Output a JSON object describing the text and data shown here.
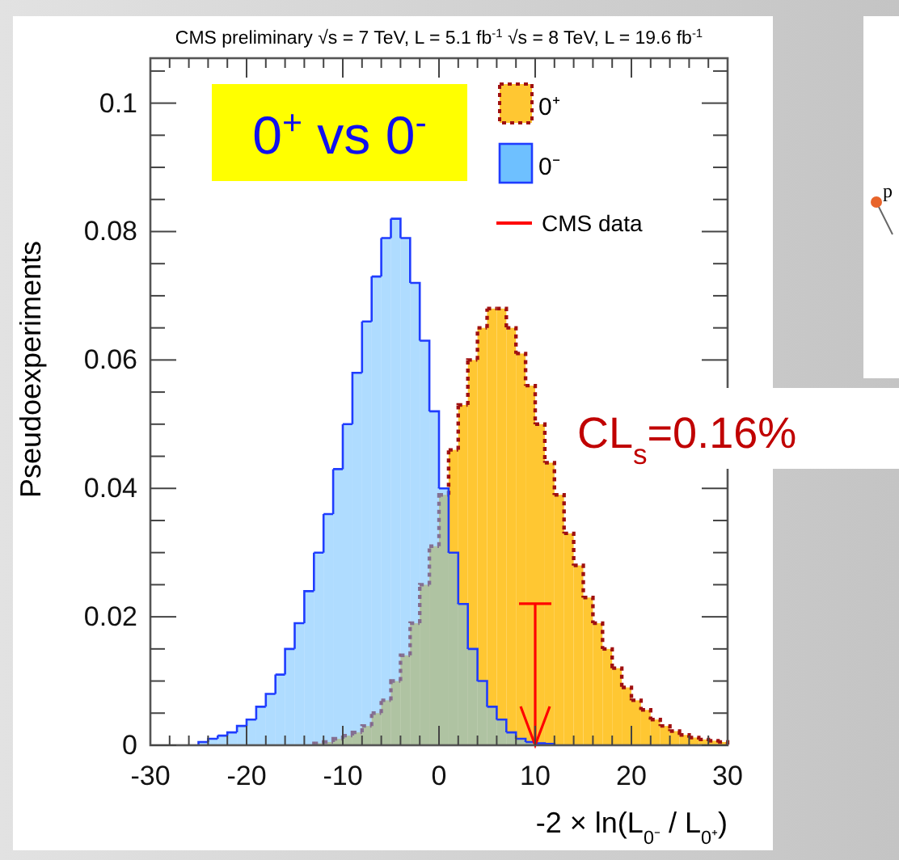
{
  "chart_data": {
    "type": "histogram",
    "title": "CMS preliminary    √s = 7 TeV, L = 5.1 fb$^{-1}$  √s = 8 TeV, L = 19.6 fb$^{-1}$",
    "xlabel": "-2 × ln(L$_{0⁻}$ / L$_{0⁺}$)",
    "ylabel": "Pseudoexperiments",
    "bins": [
      -30,
      -29,
      -28,
      -27,
      -26,
      -25,
      -24,
      -23,
      -22,
      -21,
      -20,
      -19,
      -18,
      -17,
      -16,
      -15,
      -14,
      -13,
      -12,
      -11,
      -10,
      -9,
      -8,
      -7,
      -6,
      -5,
      -4,
      -3,
      -2,
      -1,
      0,
      1,
      2,
      3,
      4,
      5,
      6,
      7,
      8,
      9,
      10,
      11,
      12,
      13,
      14,
      15,
      16,
      17,
      18,
      19,
      20,
      21,
      22,
      23,
      24,
      25,
      26,
      27,
      28,
      29,
      30
    ],
    "series": [
      {
        "name": "0⁺",
        "color": "#ffc732",
        "line_style": "dotted",
        "values": [
          0,
          0,
          0,
          0,
          0,
          0,
          0,
          0,
          0,
          0,
          0,
          0,
          0,
          0,
          0,
          0,
          0,
          0.0003,
          0.0005,
          0.001,
          0.0015,
          0.002,
          0.003,
          0.005,
          0.007,
          0.01,
          0.014,
          0.019,
          0.025,
          0.031,
          0.039,
          0.046,
          0.053,
          0.06,
          0.065,
          0.068,
          0.068,
          0.065,
          0.061,
          0.056,
          0.05,
          0.044,
          0.039,
          0.033,
          0.028,
          0.023,
          0.019,
          0.015,
          0.012,
          0.009,
          0.007,
          0.0055,
          0.004,
          0.003,
          0.0022,
          0.0016,
          0.0012,
          0.0009,
          0.0007,
          0.0005
        ]
      },
      {
        "name": "0⁻",
        "color": "#6ec0ff",
        "line_style": "solid",
        "values": [
          0,
          0,
          0,
          0,
          0,
          0.0005,
          0.001,
          0.0015,
          0.002,
          0.003,
          0.004,
          0.006,
          0.008,
          0.011,
          0.015,
          0.019,
          0.024,
          0.03,
          0.036,
          0.043,
          0.05,
          0.058,
          0.066,
          0.073,
          0.079,
          0.082,
          0.079,
          0.072,
          0.063,
          0.052,
          0.04,
          0.03,
          0.022,
          0.015,
          0.01,
          0.006,
          0.004,
          0.002,
          0.001,
          0.0005,
          0.0003,
          0.0002,
          0,
          0,
          0,
          0,
          0,
          0,
          0,
          0,
          0,
          0,
          0,
          0,
          0,
          0,
          0,
          0,
          0,
          0
        ]
      }
    ],
    "xlim": [
      -30,
      30
    ],
    "xticks": [
      -30,
      {
        "value": -28,
        "label": null
      },
      {
        "value": -26,
        "label": null
      },
      {
        "value": -24,
        "label": null
      },
      {
        "value": -22,
        "label": null
      },
      -20,
      {
        "value": -18,
        "label": null
      },
      {
        "value": -16,
        "label": null
      },
      {
        "value": -14,
        "label": null
      },
      {
        "value": -12,
        "label": null
      },
      -10,
      {
        "value": -8,
        "label": null
      },
      {
        "value": -6,
        "label": null
      },
      {
        "value": -4,
        "label": null
      },
      {
        "value": -2,
        "label": null
      },
      0,
      {
        "value": 2,
        "label": null
      },
      {
        "value": 4,
        "label": null
      },
      {
        "value": 6,
        "label": null
      },
      {
        "value": 8,
        "label": null
      },
      10,
      {
        "value": 12,
        "label": null
      },
      {
        "value": 14,
        "label": null
      },
      {
        "value": 16,
        "label": null
      },
      {
        "value": 18,
        "label": null
      },
      20,
      {
        "value": 22,
        "label": null
      },
      {
        "value": 24,
        "label": null
      },
      {
        "value": 26,
        "label": null
      },
      {
        "value": 28,
        "label": null
      },
      30
    ],
    "ylim": [
      0,
      0.107
    ],
    "yticks": [
      0,
      {
        "value": 0.005,
        "label": null
      },
      {
        "value": 0.01,
        "label": null
      },
      {
        "value": 0.015,
        "label": null
      },
      0.02,
      {
        "value": 0.025,
        "label": null
      },
      {
        "value": 0.03,
        "label": null
      },
      {
        "value": 0.035,
        "label": null
      },
      0.04,
      {
        "value": 0.045,
        "label": null
      },
      {
        "value": 0.05,
        "label": null
      },
      {
        "value": 0.055,
        "label": null
      },
      0.06,
      {
        "value": 0.065,
        "label": null
      },
      {
        "value": 0.07,
        "label": null
      },
      {
        "value": 0.075,
        "label": null
      },
      0.08,
      {
        "value": 0.085,
        "label": null
      },
      {
        "value": 0.09,
        "label": null
      },
      {
        "value": 0.095,
        "label": null
      },
      0.1,
      {
        "value": 0.105,
        "label": null
      }
    ],
    "ref_lines": [
      {
        "axis": "x",
        "value": 10,
        "label": "CMS data",
        "color": "#ff0000"
      }
    ],
    "legend": "top right",
    "annotations": [
      "0$^{+}$ vs 0$^{-}$",
      "CL$_{s}$=0.16%",
      "p"
    ]
  }
}
